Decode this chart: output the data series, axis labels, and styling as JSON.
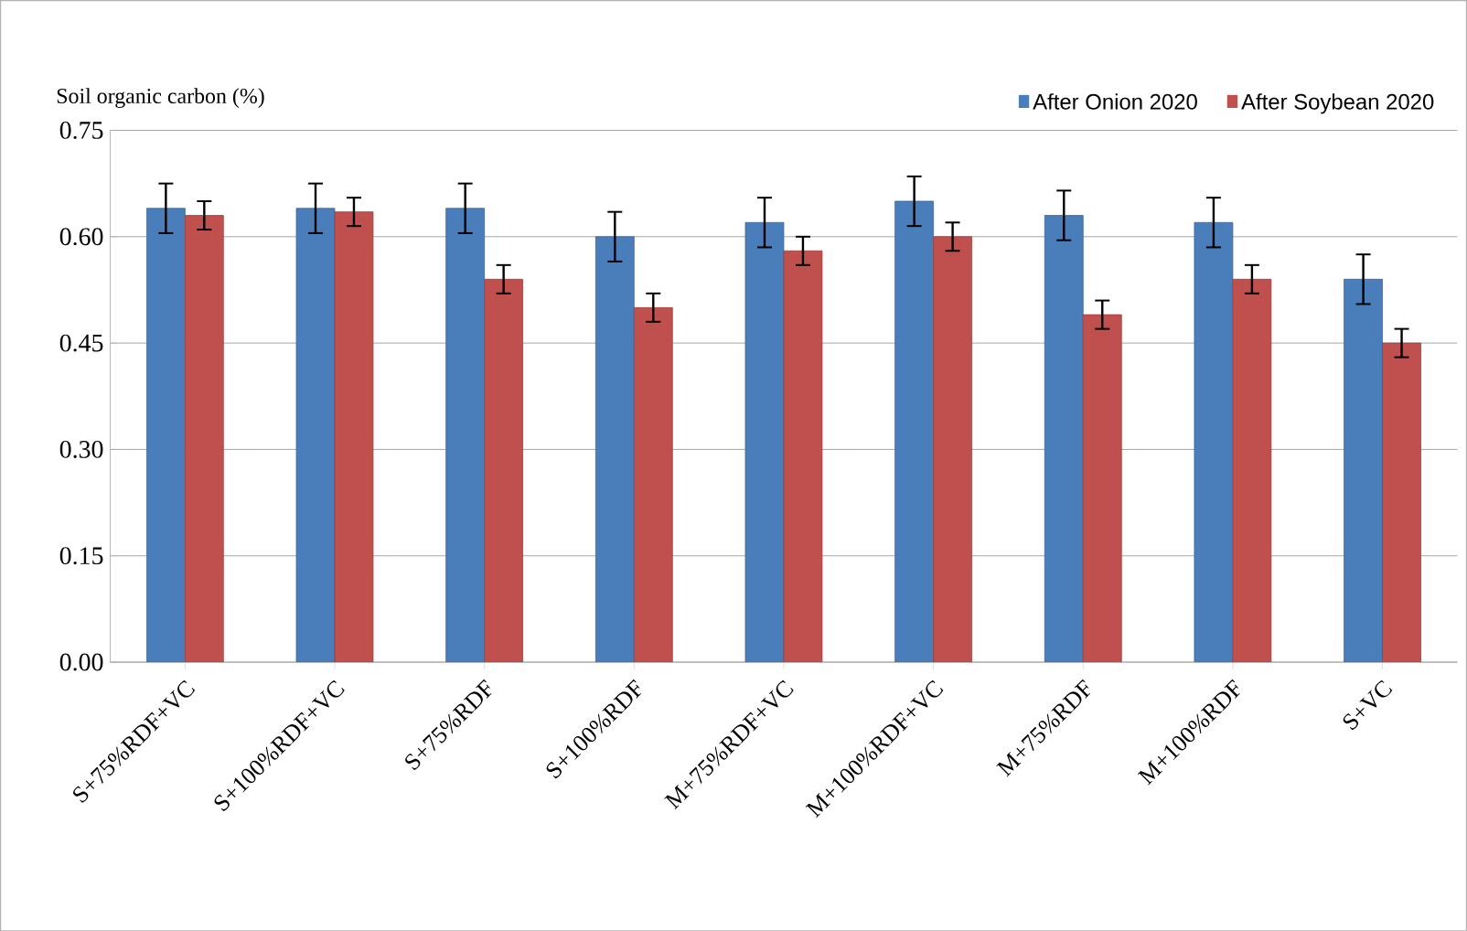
{
  "chart_data": {
    "type": "bar",
    "ylabel": "Soil organic carbon (%)",
    "categories": [
      "S+75%RDF+VC",
      "S+100%RDF+VC",
      "S+75%RDF",
      "S+100%RDF",
      "M+75%RDF+VC",
      "M+100%RDF+VC",
      "M+75%RDF",
      "M+100%RDF",
      "S+VC"
    ],
    "series": [
      {
        "name": "After Onion 2020",
        "color": "#4a7ebb",
        "values": [
          0.64,
          0.64,
          0.64,
          0.6,
          0.62,
          0.65,
          0.63,
          0.62,
          0.54
        ],
        "errors": [
          0.035,
          0.035,
          0.035,
          0.035,
          0.035,
          0.035,
          0.035,
          0.035,
          0.035
        ]
      },
      {
        "name": "After Soybean 2020",
        "color": "#c0504d",
        "values": [
          0.63,
          0.635,
          0.54,
          0.5,
          0.58,
          0.6,
          0.49,
          0.54,
          0.45
        ],
        "errors": [
          0.02,
          0.02,
          0.02,
          0.02,
          0.02,
          0.02,
          0.02,
          0.02,
          0.02
        ]
      }
    ],
    "ylim": [
      0,
      0.75
    ],
    "yticks": [
      {
        "value": 0,
        "label": "0.00"
      },
      {
        "value": 0.15,
        "label": "0.15"
      },
      {
        "value": 0.3,
        "label": "0.30"
      },
      {
        "value": 0.45,
        "label": "0.45"
      },
      {
        "value": 0.6,
        "label": "0.60"
      },
      {
        "value": 0.75,
        "label": "0.75"
      }
    ],
    "grid": "y",
    "legend": "top right"
  }
}
